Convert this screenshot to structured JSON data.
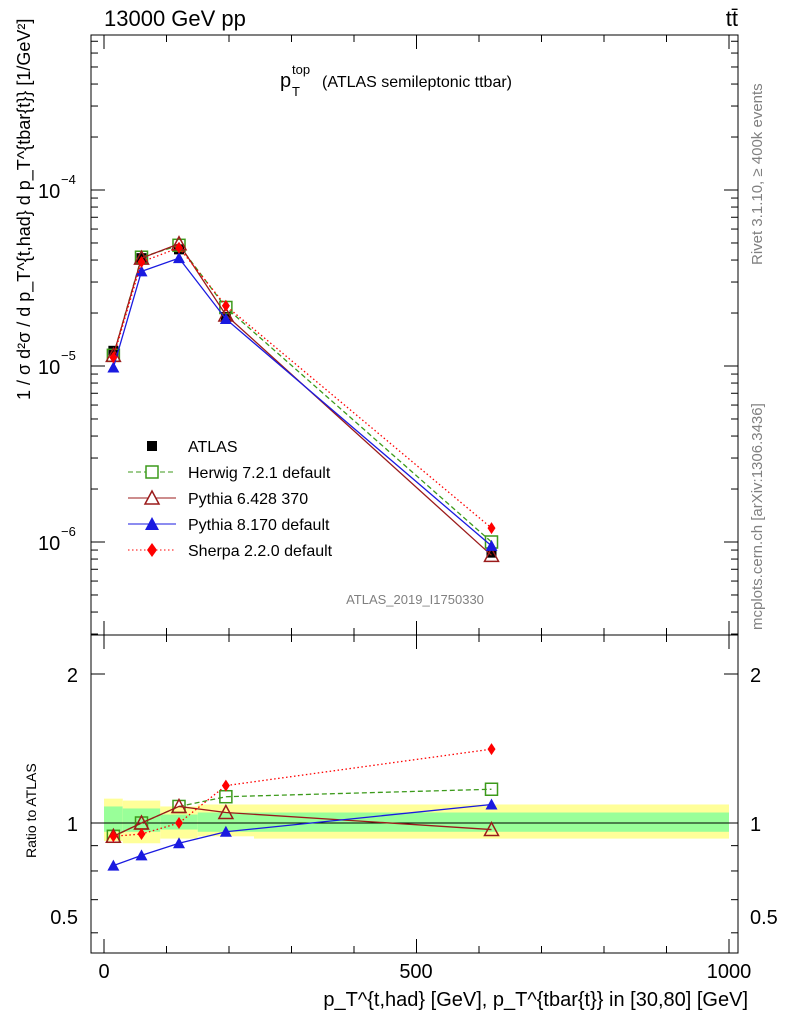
{
  "header": {
    "energy_label": "13000 GeV pp",
    "process_label": "tt̄"
  },
  "side": {
    "rivet": "Rivet 3.1.10, ≥ 400k events",
    "mcplots": "mcplots.cern.ch [arXiv:1306.3436]"
  },
  "main": {
    "title_main": "p",
    "title_sup": "top",
    "title_sub": "T",
    "title_rest": "(ATLAS semileptonic ttbar)",
    "watermark": "ATLAS_2019_I1750330",
    "ylabel": "1 / σ d²σ / d p_T^{t,had} d p_T^{tbar{t}} [1/GeV²]",
    "ytick_labels": [
      "10",
      "10",
      "10"
    ],
    "ytick_exps": [
      "−4",
      "−5",
      "−6"
    ]
  },
  "ratio": {
    "ylabel": "Ratio to ATLAS",
    "ytick_labels_left": [
      "2",
      "1",
      "0.5"
    ],
    "ytick_labels_right": [
      "2",
      "1",
      "0.5"
    ]
  },
  "xaxis": {
    "tick_labels": [
      "0",
      "500",
      "1000"
    ],
    "label_text": "p_T^{t,had} [GeV], p_T^{tbar{t}} in [30,80] [GeV]"
  },
  "legend": {
    "entries": [
      "ATLAS",
      "Herwig 7.2.1 default",
      "Pythia 6.428 370",
      "Pythia 8.170 default",
      "Sherpa 2.2.0 default"
    ]
  },
  "chart_data": {
    "type": "line",
    "title": "p_T^top (ATLAS semileptonic ttbar)",
    "xlabel": "p_T^{t,had} [GeV], p_T^{tbar{t}} in [30,80] [GeV]",
    "ylabel": "1 / σ d²σ / d p_T^{t,had} d p_T^{tbar{t}} [1/GeV²]",
    "xlim": [
      -20,
      1025
    ],
    "ylim": [
      3e-07,
      0.001
    ],
    "yscale": "log",
    "ratio_ylim": [
      0.4,
      2.4
    ],
    "x": [
      15,
      60,
      120,
      195,
      620
    ],
    "bin_edges": [
      0,
      30,
      90,
      150,
      240,
      1000
    ],
    "series": [
      {
        "name": "ATLAS",
        "color": "#000000",
        "marker": "square",
        "values": [
          1.22e-05,
          4.1e-05,
          4.6e-05,
          1.9e-05,
          8.7e-07
        ],
        "ratio": [
          1,
          1,
          1,
          1,
          1
        ]
      },
      {
        "name": "Herwig 7.2.1 default",
        "color": "#3c9a1b",
        "marker": "open-square",
        "dash": "dashed",
        "values": [
          1.15e-05,
          4.15e-05,
          4.85e-05,
          2.15e-05,
          1e-06
        ],
        "ratio": [
          0.94,
          1.0,
          1.08,
          1.13,
          1.17
        ]
      },
      {
        "name": "Pythia 6.428 370",
        "color": "#9b1b1b",
        "marker": "open-triangle",
        "dash": "solid",
        "values": [
          1.15e-05,
          4.1e-05,
          4.95e-05,
          1.95e-05,
          8.4e-07
        ],
        "ratio": [
          0.94,
          1.0,
          1.08,
          1.05,
          0.97
        ]
      },
      {
        "name": "Pythia 8.170 default",
        "color": "#1a1ae0",
        "marker": "triangle",
        "dash": "solid",
        "values": [
          9.8e-06,
          3.45e-05,
          4.1e-05,
          1.85e-05,
          9.5e-07
        ],
        "ratio": [
          0.82,
          0.86,
          0.91,
          0.96,
          1.09
        ]
      },
      {
        "name": "Sherpa 2.2.0 default",
        "color": "#ff0000",
        "marker": "diamond",
        "dash": "dotted",
        "values": [
          1.12e-05,
          3.9e-05,
          4.7e-05,
          2.2e-05,
          1.2e-06
        ],
        "ratio": [
          0.94,
          0.95,
          1.0,
          1.19,
          1.41
        ]
      }
    ],
    "uncertainty_bands": {
      "inner_lower": [
        0.96,
        0.96,
        0.97,
        0.96,
        0.96
      ],
      "inner_upper": [
        1.08,
        1.07,
        1.04,
        1.05,
        1.05
      ],
      "outer_lower": [
        0.92,
        0.91,
        0.93,
        0.94,
        0.93
      ],
      "outer_upper": [
        1.12,
        1.11,
        1.08,
        1.09,
        1.09
      ]
    }
  }
}
